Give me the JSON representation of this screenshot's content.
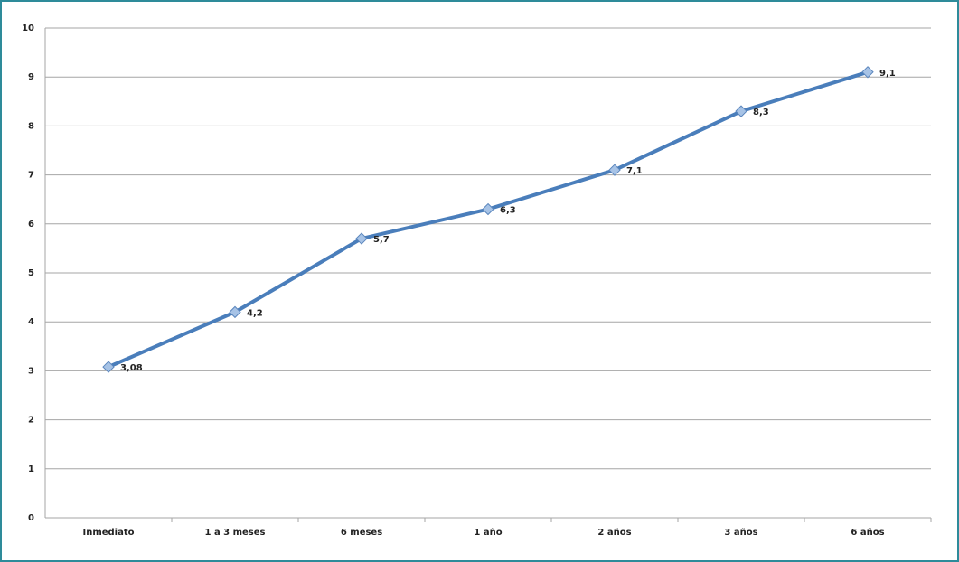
{
  "chart_data": {
    "type": "line",
    "categories": [
      "Inmediato",
      "1 a 3 meses",
      "6 meses",
      "1 año",
      "2 años",
      "3 años",
      "6 años"
    ],
    "series": [
      {
        "color": "#4a7ebb",
        "values": [
          3.08,
          4.2,
          5.7,
          6.3,
          7.1,
          8.3,
          9.1
        ],
        "value_labels": [
          "3,08",
          "4,2",
          "5,7",
          "6,3",
          "7,1",
          "8,3",
          "9,1"
        ]
      }
    ],
    "ylim": [
      0,
      10
    ],
    "yticks": [
      0,
      1,
      2,
      3,
      4,
      5,
      6,
      7,
      8,
      9,
      10
    ],
    "grid": true
  }
}
